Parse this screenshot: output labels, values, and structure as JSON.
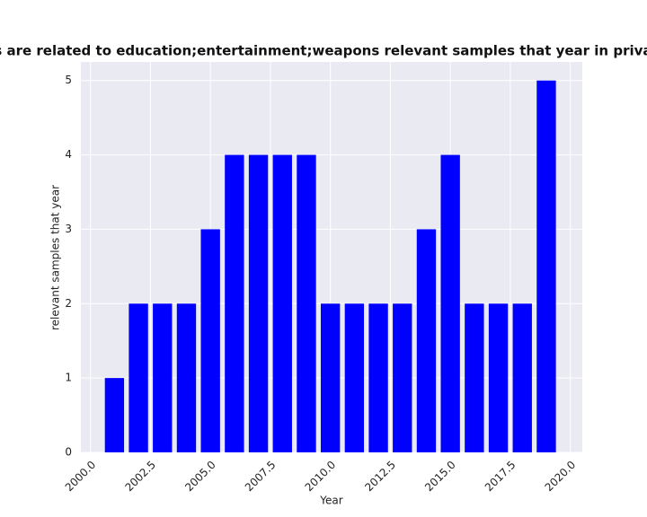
{
  "chart_data": {
    "type": "bar",
    "title": "gories are related to education;entertainment;weapons relevant samples that year in privacy po",
    "x_label": "Year",
    "y_label": "relevant samples that year",
    "x": [
      2001,
      2002,
      2003,
      2004,
      2005,
      2006,
      2007,
      2008,
      2009,
      2010,
      2011,
      2012,
      2013,
      2014,
      2015,
      2016,
      2017,
      2018,
      2019
    ],
    "values": [
      1,
      2,
      2,
      2,
      3,
      4,
      4,
      4,
      4,
      2,
      2,
      2,
      2,
      3,
      4,
      2,
      2,
      2,
      5
    ],
    "color": "#0000ff",
    "xlim": [
      1999.6,
      2020.5
    ],
    "xticks": [
      {
        "value": 2000,
        "label": "2000.0"
      },
      2002.5,
      {
        "value": 2005,
        "label": "2005.0"
      },
      2007.5,
      {
        "value": 2010,
        "label": "2010.0"
      },
      2012.5,
      {
        "value": 2015,
        "label": "2015.0"
      },
      2017.5,
      {
        "value": 2020,
        "label": "2020.0"
      }
    ],
    "ylim": [
      0,
      5.25
    ],
    "yticks": [
      0,
      1,
      2,
      3,
      4,
      5
    ],
    "grid": true
  }
}
